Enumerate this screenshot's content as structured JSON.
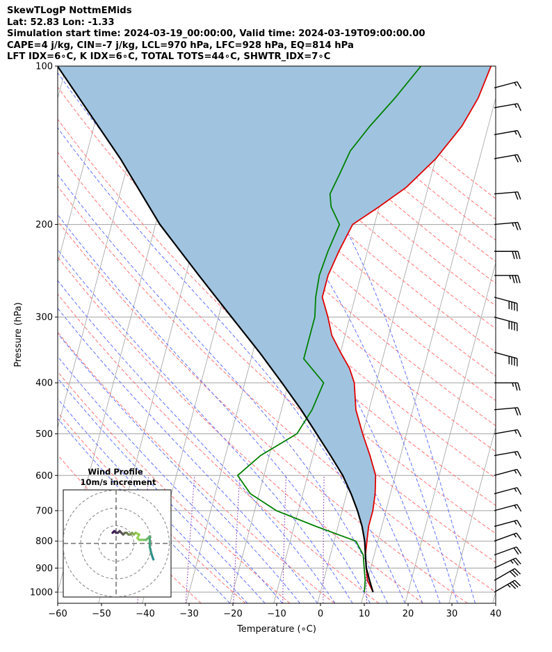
{
  "header": {
    "title": "SkewTLogP NottmEMids",
    "location": "Lat: 52.83   Lon: -1.33",
    "times": "Simulation start time: 2024-03-19_00:00:00, Valid time: 2024-03-19T09:00:00.00",
    "params": "CAPE=4 j/kg, CIN=-7 j/kg, LCL=970 hPa, LFC=928 hPa, EQ=814 hPa",
    "indices": "LFT IDX=6∘C, K IDX=6∘C, TOTAL TOTS=44∘C, SHWTR_IDX=7∘C"
  },
  "chart_data": {
    "type": "line",
    "subtype": "skew-T log-P diagram",
    "xlabel": "Temperature (∘C)",
    "ylabel": "Pressure (hPa)",
    "xlim": [
      -60,
      40
    ],
    "ylim": [
      1050,
      100
    ],
    "y_scale": "log",
    "x_ticks": [
      "−60",
      "−50",
      "−40",
      "−30",
      "−20",
      "−10",
      "0",
      "10",
      "20",
      "30",
      "40"
    ],
    "y_ticks": [
      100,
      200,
      300,
      400,
      500,
      600,
      700,
      800,
      900,
      1000
    ],
    "grid": true,
    "series": [
      {
        "role": "temperature",
        "color": "#e00000",
        "points": [
          [
            12,
            1000
          ],
          [
            10,
            950
          ],
          [
            9,
            900
          ],
          [
            8,
            850
          ],
          [
            7.5,
            800
          ],
          [
            7,
            750
          ],
          [
            7,
            700
          ],
          [
            6.5,
            650
          ],
          [
            5.5,
            600
          ],
          [
            3,
            550
          ],
          [
            0,
            500
          ],
          [
            -3,
            450
          ],
          [
            -5,
            400
          ],
          [
            -7,
            375
          ],
          [
            -10,
            350
          ],
          [
            -13,
            325
          ],
          [
            -15,
            300
          ],
          [
            -17.5,
            275
          ],
          [
            -17.5,
            250
          ],
          [
            -16.5,
            225
          ],
          [
            -15,
            200
          ],
          [
            -10,
            185
          ],
          [
            -5,
            170
          ],
          [
            0,
            150
          ],
          [
            4,
            130
          ],
          [
            6,
            115
          ],
          [
            7,
            100
          ]
        ]
      },
      {
        "role": "dewpoint",
        "color": "#008000",
        "points": [
          [
            10,
            1000
          ],
          [
            9.5,
            950
          ],
          [
            8.5,
            900
          ],
          [
            7.5,
            850
          ],
          [
            5,
            800
          ],
          [
            -5,
            750
          ],
          [
            -15,
            700
          ],
          [
            -22,
            650
          ],
          [
            -26,
            600
          ],
          [
            -22,
            550
          ],
          [
            -15,
            500
          ],
          [
            -13,
            450
          ],
          [
            -12,
            400
          ],
          [
            -18,
            360
          ],
          [
            -18,
            330
          ],
          [
            -18,
            300
          ],
          [
            -19,
            275
          ],
          [
            -19.5,
            250
          ],
          [
            -19,
            225
          ],
          [
            -18,
            200
          ],
          [
            -21,
            185
          ],
          [
            -22,
            175
          ],
          [
            -21,
            160
          ],
          [
            -20,
            145
          ],
          [
            -17,
            130
          ],
          [
            -13,
            115
          ],
          [
            -9,
            100
          ]
        ]
      },
      {
        "role": "parcel",
        "color": "#000000",
        "points": [
          [
            12,
            1000
          ],
          [
            10.5,
            950
          ],
          [
            9,
            900
          ],
          [
            8,
            850
          ],
          [
            7,
            800
          ],
          [
            5.5,
            750
          ],
          [
            3.5,
            700
          ],
          [
            1,
            650
          ],
          [
            -2,
            600
          ],
          [
            -6,
            550
          ],
          [
            -10.5,
            500
          ],
          [
            -15.5,
            450
          ],
          [
            -21.5,
            400
          ],
          [
            -28.5,
            350
          ],
          [
            -37,
            300
          ],
          [
            -47,
            250
          ],
          [
            -59,
            200
          ],
          [
            -72,
            150
          ],
          [
            -92,
            100
          ]
        ]
      }
    ],
    "shaded_region": {
      "color": "#a0c4e0",
      "between": [
        "temperature",
        "parcel"
      ]
    },
    "reference_lines": {
      "isotherms_color": "#a0a0a0",
      "dry_adiabats_color": "#ff7070",
      "moist_adiabats_color": "#6070ff",
      "mixing_ratio_color": "#9050c0"
    },
    "wind_barbs": [
      {
        "p": 1000,
        "speed": 35,
        "dir": 240
      },
      {
        "p": 950,
        "speed": 30,
        "dir": 240
      },
      {
        "p": 900,
        "speed": 25,
        "dir": 245
      },
      {
        "p": 850,
        "speed": 20,
        "dir": 250
      },
      {
        "p": 800,
        "speed": 15,
        "dir": 250
      },
      {
        "p": 750,
        "speed": 15,
        "dir": 255
      },
      {
        "p": 700,
        "speed": 15,
        "dir": 255
      },
      {
        "p": 650,
        "speed": 15,
        "dir": 255
      },
      {
        "p": 600,
        "speed": 15,
        "dir": 255
      },
      {
        "p": 550,
        "speed": 15,
        "dir": 260
      },
      {
        "p": 500,
        "speed": 15,
        "dir": 260
      },
      {
        "p": 450,
        "speed": 20,
        "dir": 265
      },
      {
        "p": 400,
        "speed": 25,
        "dir": 270
      },
      {
        "p": 350,
        "speed": 40,
        "dir": 285
      },
      {
        "p": 300,
        "speed": 40,
        "dir": 285
      },
      {
        "p": 275,
        "speed": 40,
        "dir": 285
      },
      {
        "p": 250,
        "speed": 35,
        "dir": 270
      },
      {
        "p": 225,
        "speed": 30,
        "dir": 270
      },
      {
        "p": 200,
        "speed": 25,
        "dir": 265
      },
      {
        "p": 175,
        "speed": 20,
        "dir": 265
      },
      {
        "p": 150,
        "speed": 20,
        "dir": 260
      },
      {
        "p": 135,
        "speed": 15,
        "dir": 260
      },
      {
        "p": 120,
        "speed": 15,
        "dir": 260
      },
      {
        "p": 110,
        "speed": 15,
        "dir": 255
      }
    ],
    "hodograph": {
      "title_line1": "Wind Profile",
      "title_line2": "10m/s increment",
      "color_low": "#2a8c8c",
      "color_mid": "#9ad650",
      "color_high": "#3b1a55",
      "points": [
        [
          21,
          -9
        ],
        [
          20,
          -6
        ],
        [
          19,
          -2
        ],
        [
          19,
          1
        ],
        [
          19,
          4
        ],
        [
          18,
          3
        ],
        [
          17,
          2
        ],
        [
          15,
          2
        ],
        [
          13,
          2
        ],
        [
          12,
          3
        ],
        [
          13,
          5
        ],
        [
          11,
          6
        ],
        [
          10,
          5
        ],
        [
          9,
          6
        ],
        [
          8,
          5
        ],
        [
          7,
          5
        ],
        [
          6,
          6
        ],
        [
          5,
          6
        ],
        [
          4,
          5
        ],
        [
          3,
          6
        ],
        [
          2,
          7
        ],
        [
          1,
          6
        ],
        [
          0,
          6
        ],
        [
          -1,
          7
        ],
        [
          -2,
          6
        ]
      ]
    }
  }
}
